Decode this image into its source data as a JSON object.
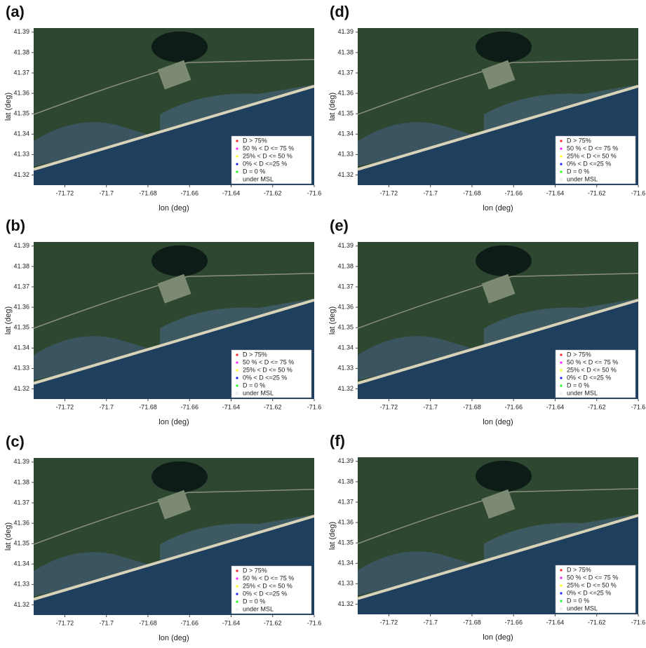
{
  "panels": [
    {
      "label": "(a)"
    },
    {
      "label": "(b)"
    },
    {
      "label": "(c)"
    },
    {
      "label": "(d)"
    },
    {
      "label": "(e)"
    },
    {
      "label": "(f)"
    }
  ],
  "axes": {
    "xlabel": "lon (deg)",
    "ylabel": "lat (deg)",
    "xlim": [
      -71.735,
      -71.6
    ],
    "ylim": [
      41.315,
      41.392
    ],
    "xticks": [
      -71.72,
      -71.7,
      -71.68,
      -71.66,
      -71.64,
      -71.62,
      -71.6
    ],
    "yticks": [
      41.32,
      41.33,
      41.34,
      41.35,
      41.36,
      41.37,
      41.38,
      41.39
    ]
  },
  "legend": [
    {
      "label": "D > 75%",
      "color": "#ff2020"
    },
    {
      "label": "50 % < D <= 75 %",
      "color": "#ff20ff"
    },
    {
      "label": "25% < D <= 50 %",
      "color": "#ffff20"
    },
    {
      "label": "0% < D <=25 %",
      "color": "#2020ff"
    },
    {
      "label": "D = 0 %",
      "color": "#20ff20"
    },
    {
      "label": "under MSL",
      "color": "#ffffff"
    }
  ]
}
